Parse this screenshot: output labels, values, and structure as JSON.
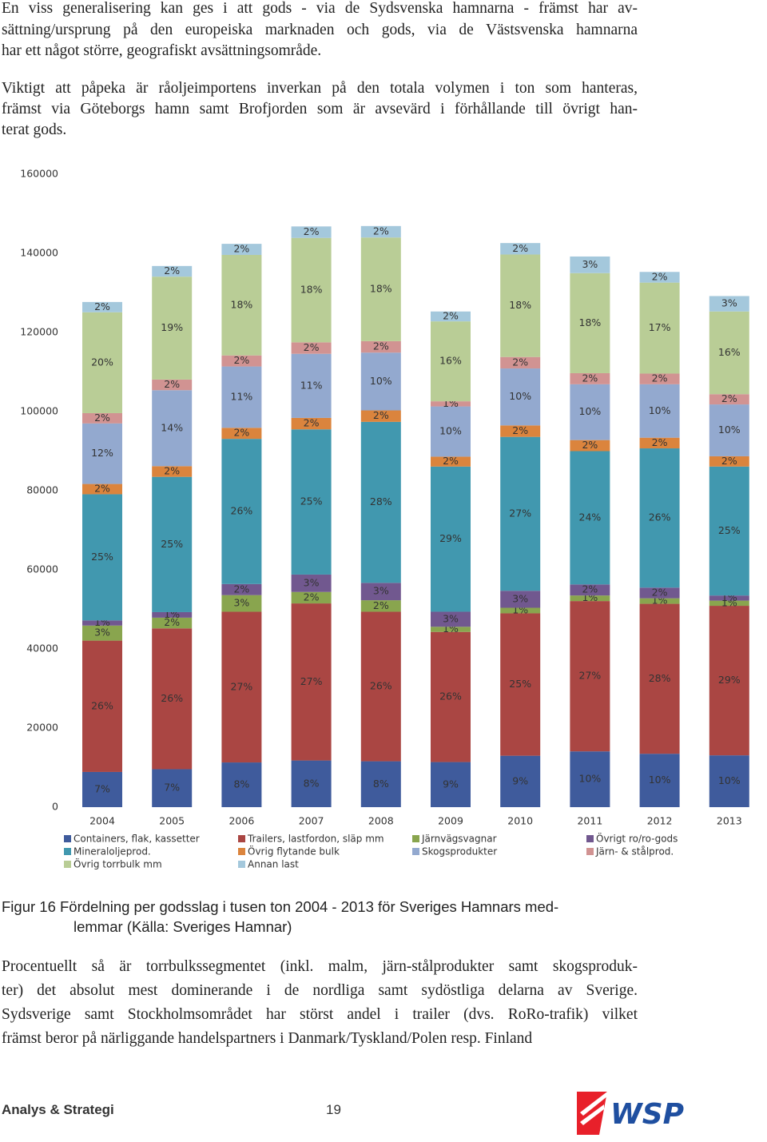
{
  "paragraphs": [
    {
      "lines": [
        "En viss generalisering kan ges i att gods - via de Sydsvenska hamnarna - främst har av-",
        "sättning/ursprung på den europeiska marknaden och gods, via de Västsvenska hamnarna",
        "har ett något större, geografiskt avsättningsområde."
      ]
    },
    {
      "lines": [
        "Viktigt att påpeka är råoljeimportens inverkan på den totala volymen i ton som hanteras,",
        "främst via Göteborgs hamn samt Brofjorden som är avsevärd i förhållande till övrigt han-",
        "terat gods."
      ]
    },
    {
      "lines": [
        "Procentuellt så är torrbulkssegmentet (inkl. malm, järn-stålprodukter samt skogsproduk-",
        "ter) det absolut mest dominerande i de nordliga samt sydöstliga delarna av Sverige.",
        "Sydsverige samt Stockholmsområdet har störst andel i trailer (dvs. RoRo-trafik) vilket",
        "främst beror på närliggande handelspartners i Danmark/Tyskland/Polen resp. Finland"
      ]
    }
  ],
  "caption": {
    "lines": [
      "Figur 16 Fördelning per godsslag i tusen ton 2004 - 2013 för Sveriges Hamnars med-",
      "lemmar (Källa: Sveriges Hamnar)"
    ]
  },
  "footer": {
    "left": "Analys & Strategi",
    "page": "19",
    "logo": "WSP"
  },
  "chart_data": {
    "type": "stacked-bar",
    "categories": [
      "2004",
      "2005",
      "2006",
      "2007",
      "2008",
      "2009",
      "2010",
      "2011",
      "2012",
      "2013"
    ],
    "ylim": [
      0,
      160000
    ],
    "yticks": [
      0,
      20000,
      40000,
      60000,
      80000,
      100000,
      120000,
      140000,
      160000
    ],
    "grid": false,
    "series": [
      {
        "name": "Containers, flak, kassetter",
        "color": "#3f5b9c",
        "values": [
          8900,
          9600,
          11300,
          11800,
          11600,
          11400,
          13000,
          14100,
          13500,
          13100
        ],
        "value_labels": [
          "7%",
          "7%",
          "8%",
          "8%",
          "8%",
          "9%",
          "9%",
          "10%",
          "10%",
          "10%"
        ]
      },
      {
        "name": "Trailers, lastfordon, släp mm",
        "color": "#aa4643",
        "values": [
          33200,
          35600,
          38100,
          39700,
          37800,
          32900,
          36000,
          38000,
          37900,
          37800
        ],
        "value_labels": [
          "26%",
          "26%",
          "27%",
          "27%",
          "26%",
          "26%",
          "25%",
          "27%",
          "28%",
          "29%"
        ]
      },
      {
        "name": "Järnvägsvagnar",
        "color": "#89a54e",
        "values": [
          3800,
          2700,
          4200,
          2900,
          2900,
          1300,
          1400,
          1400,
          1400,
          1300
        ],
        "value_labels": [
          "3%",
          "2%",
          "3%",
          "2%",
          "2%",
          "1%",
          "1%",
          "1%",
          "1%",
          "1%"
        ]
      },
      {
        "name": "Övrigt ro/ro-gods",
        "color": "#71588f",
        "values": [
          1300,
          1400,
          2800,
          4400,
          4400,
          3800,
          4300,
          2800,
          2700,
          1300
        ],
        "value_labels": [
          "1%",
          "1%",
          "2%",
          "3%",
          "3%",
          "3%",
          "3%",
          "2%",
          "2%",
          "1%"
        ]
      },
      {
        "name": "Mineraloljeprod.",
        "color": "#4198af",
        "values": [
          31900,
          34200,
          36700,
          36700,
          40700,
          36700,
          38900,
          33700,
          35200,
          32600
        ],
        "value_labels": [
          "25%",
          "25%",
          "26%",
          "25%",
          "28%",
          "29%",
          "27%",
          "24%",
          "26%",
          "25%"
        ]
      },
      {
        "name": "Övrig flytande bulk",
        "color": "#db843d",
        "values": [
          2600,
          2700,
          2800,
          2900,
          2900,
          2500,
          2900,
          2800,
          2700,
          2600
        ],
        "value_labels": [
          "2%",
          "2%",
          "2%",
          "2%",
          "2%",
          "2%",
          "2%",
          "2%",
          "2%",
          "2%"
        ]
      },
      {
        "name": "Skogsprodukter",
        "color": "#93a9cf",
        "values": [
          15300,
          19200,
          15500,
          16200,
          14600,
          12700,
          14400,
          14100,
          13500,
          13100
        ],
        "value_labels": [
          "12%",
          "14%",
          "11%",
          "11%",
          "10%",
          "10%",
          "10%",
          "10%",
          "10%",
          "10%"
        ]
      },
      {
        "name": "Järn- & stålprod.",
        "color": "#d19392",
        "values": [
          2600,
          2700,
          2800,
          2900,
          2900,
          1300,
          2900,
          2800,
          2700,
          2600
        ],
        "value_labels": [
          "2%",
          "2%",
          "2%",
          "2%",
          "2%",
          "1%",
          "2%",
          "2%",
          "2%",
          "2%"
        ]
      },
      {
        "name": "Övrig torrbulk mm",
        "color": "#b9cd96",
        "values": [
          25500,
          26000,
          25400,
          26400,
          26200,
          20200,
          25900,
          25300,
          23000,
          20900
        ],
        "value_labels": [
          "20%",
          "19%",
          "18%",
          "18%",
          "18%",
          "16%",
          "18%",
          "18%",
          "17%",
          "16%"
        ]
      },
      {
        "name": "Annan last",
        "color": "#a4c8dc",
        "values": [
          2600,
          2700,
          2800,
          2900,
          2900,
          2500,
          2900,
          4200,
          2700,
          3900
        ],
        "value_labels": [
          "2%",
          "2%",
          "2%",
          "2%",
          "2%",
          "2%",
          "2%",
          "3%",
          "2%",
          "3%"
        ]
      }
    ]
  }
}
